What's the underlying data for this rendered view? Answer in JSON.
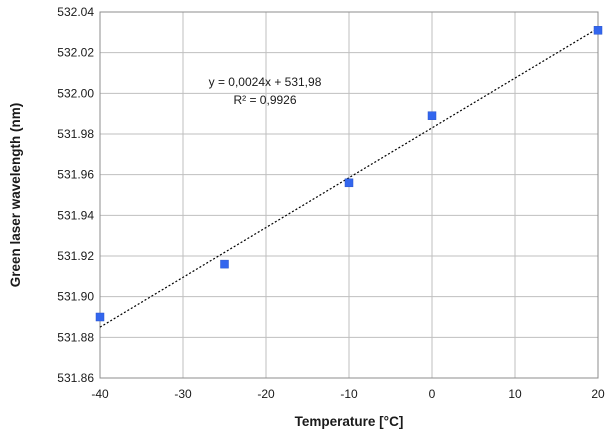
{
  "chart_data": {
    "type": "scatter",
    "xlabel": "Temperature [°C]",
    "ylabel": "Green laser wavelength (nm)",
    "xlim": [
      -40,
      20
    ],
    "ylim": [
      531.86,
      532.04
    ],
    "x_ticks": [
      -40,
      -30,
      -20,
      -10,
      0,
      10,
      20
    ],
    "y_ticks": [
      531.86,
      531.88,
      531.9,
      531.92,
      531.94,
      531.96,
      531.98,
      532.0,
      532.02,
      532.04
    ],
    "x_tick_labels": [
      "-40",
      "-30",
      "-20",
      "-10",
      "0",
      "10",
      "20"
    ],
    "y_tick_labels": [
      "531.86",
      "531.88",
      "531.90",
      "531.92",
      "531.94",
      "531.96",
      "531.98",
      "532.00",
      "532.02",
      "532.04"
    ],
    "grid": true,
    "series": [
      {
        "x": [
          -40,
          -25,
          -10,
          0,
          20
        ],
        "y": [
          531.89,
          531.916,
          531.956,
          531.989,
          532.031
        ],
        "color": "#3366ee"
      }
    ],
    "trendline": {
      "style": "dotted",
      "x": [
        -40,
        20
      ],
      "y": [
        531.885,
        532.032
      ],
      "color": "#000000"
    },
    "annotations": {
      "equation": "y = 0,0024x + 531,98",
      "r_squared": "R² = 0,9926"
    }
  }
}
